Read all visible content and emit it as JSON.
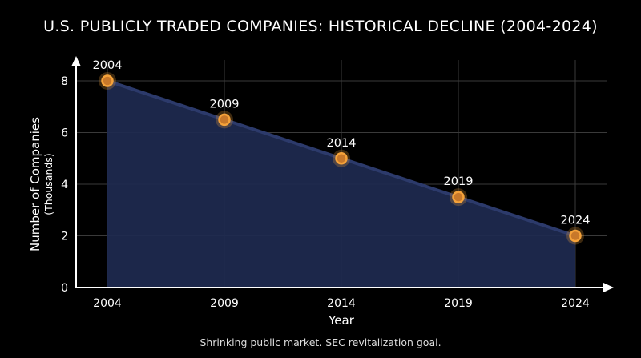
{
  "chart_data": {
    "type": "area",
    "title": "U.S. PUBLICLY TRADED COMPANIES: HISTORICAL DECLINE (2004-2024)",
    "xlabel": "Year",
    "ylabel": "Number of Companies",
    "ylabel_sub": "(Thousands)",
    "categories": [
      "2004",
      "2009",
      "2014",
      "2019",
      "2024"
    ],
    "series": [
      {
        "values": [
          8,
          6.5,
          5,
          3.5,
          2
        ]
      }
    ],
    "point_labels": [
      "2004",
      "2009",
      "2014",
      "2019",
      "2024"
    ],
    "yticks": [
      "0",
      "2",
      "4",
      "6",
      "8"
    ],
    "ylim": [
      0,
      8
    ],
    "grid": true,
    "caption": "Shrinking public market. SEC revitalization goal.",
    "colors": {
      "fill": "#1e2a50",
      "line": "#2c3a6b",
      "marker_fill": "#c8782a",
      "marker_stroke": "#f5a23a",
      "grid": "#3a3a3a",
      "axis": "#ffffff",
      "background": "#000000"
    }
  }
}
